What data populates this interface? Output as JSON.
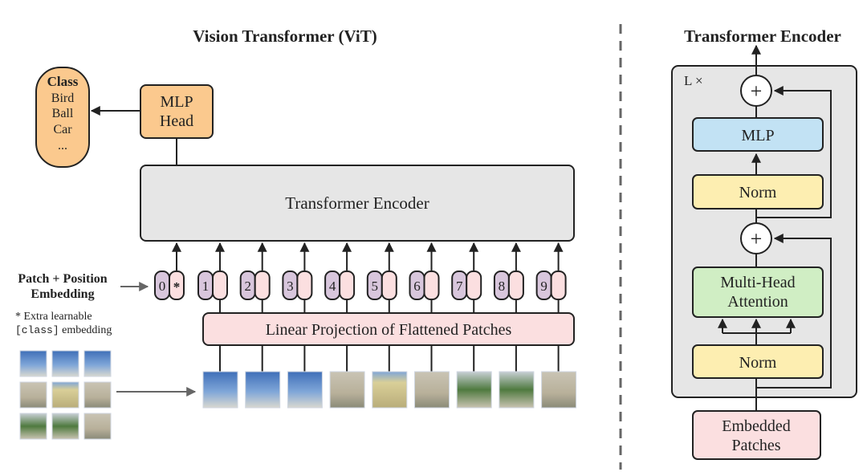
{
  "vit": {
    "title": "Vision Transformer (ViT)",
    "class_box": {
      "title": "Class",
      "items": [
        "Bird",
        "Ball",
        "Car",
        "..."
      ]
    },
    "mlp_head": {
      "line1": "MLP",
      "line2": "Head"
    },
    "encoder_label": "Transformer Encoder",
    "tokens": [
      "0",
      "1",
      "2",
      "3",
      "4",
      "5",
      "6",
      "7",
      "8",
      "9"
    ],
    "class_token_marker": "*",
    "embedding_label": {
      "line1": "Patch + Position",
      "line2": "Embedding"
    },
    "footnote": {
      "line1": "* Extra learnable",
      "code": "[class]",
      "line2_rest": " embedding"
    },
    "projection_label": "Linear Projection of Flattened Patches"
  },
  "encoder_detail": {
    "title": "Transformer Encoder",
    "repeat_label": "L ×",
    "plus": "+",
    "mlp": "MLP",
    "norm": "Norm",
    "mha": {
      "line1": "Multi-Head",
      "line2": "Attention"
    },
    "embedded": {
      "line1": "Embedded",
      "line2": "Patches"
    }
  },
  "colors": {
    "class": "#fbc98e",
    "mlp_head": "#fbc98e",
    "encoder": "#e6e6e6",
    "position": "#d8c6dc",
    "patch": "#fbdfe0",
    "mlp": "#c2e2f4",
    "norm": "#fdeeb1",
    "mha": "#d0eec4"
  }
}
